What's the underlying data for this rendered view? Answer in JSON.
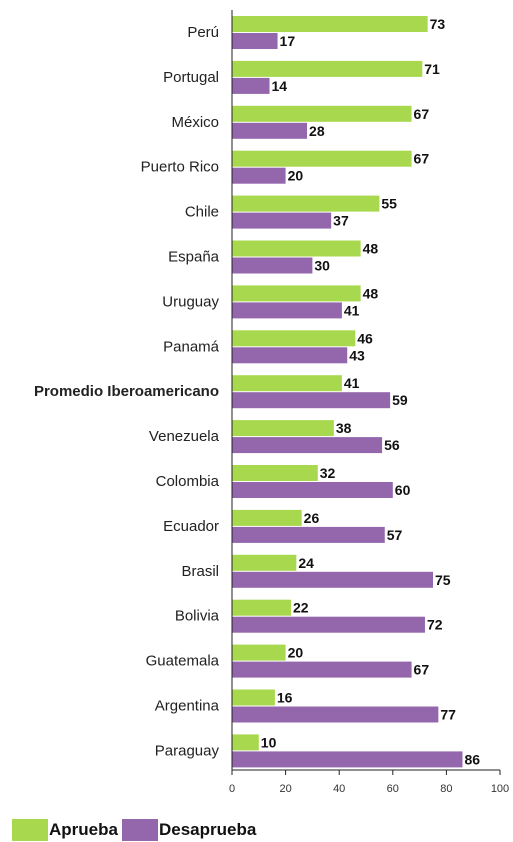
{
  "chart_data": {
    "type": "bar",
    "orientation": "horizontal",
    "categories": [
      "Perú",
      "Portugal",
      "México",
      "Puerto Rico",
      "Chile",
      "España",
      "Uruguay",
      "Panamá",
      "Promedio Iberoamericano",
      "Venezuela",
      "Colombia",
      "Ecuador",
      "Brasil",
      "Bolivia",
      "Guatemala",
      "Argentina",
      "Paraguay"
    ],
    "highlight_category": "Promedio Iberoamericano",
    "series": [
      {
        "name": "Aprueba",
        "color": "#A8D84E",
        "values": [
          73,
          71,
          67,
          67,
          55,
          48,
          48,
          46,
          41,
          38,
          32,
          26,
          24,
          22,
          20,
          16,
          10
        ]
      },
      {
        "name": "Desaprueba",
        "color": "#9467AC",
        "values": [
          17,
          14,
          28,
          20,
          37,
          30,
          41,
          43,
          59,
          56,
          60,
          57,
          75,
          72,
          67,
          77,
          86
        ]
      }
    ],
    "xlim": [
      0,
      100
    ],
    "xticks": [
      "0",
      "20",
      "40",
      "60",
      "80",
      "100"
    ],
    "grid": false,
    "legend_position": "bottom-left",
    "title": "",
    "xlabel": "",
    "ylabel": ""
  },
  "legend": {
    "aprueba_label": "Aprueba",
    "desaprueba_label": "Desaprueba"
  }
}
